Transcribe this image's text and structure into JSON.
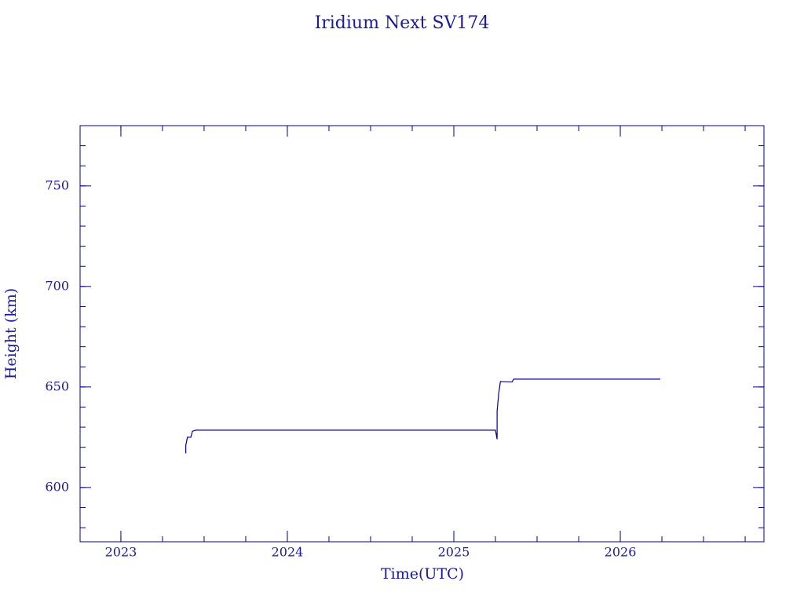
{
  "chart_data": {
    "type": "line",
    "title": "Iridium Next SV174",
    "xlabel": "Time(UTC)",
    "ylabel": "Height (km)",
    "x": [
      2023.39,
      2023.39,
      2023.4,
      2023.42,
      2023.43,
      2023.45,
      2024.0,
      2024.5,
      2025.0,
      2025.25,
      2025.26,
      2025.26,
      2025.27,
      2025.28,
      2025.35,
      2025.36,
      2026.24
    ],
    "series": [
      {
        "name": "Height",
        "color": "#00008b",
        "values": [
          617,
          621,
          625,
          625,
          628,
          628.5,
          628.5,
          628.5,
          628.5,
          628.5,
          624,
          638,
          647,
          652.7,
          652.5,
          653.9,
          653.9
        ]
      }
    ],
    "xlim": [
      2022.755,
      2026.863
    ],
    "xticks": [
      2023,
      2024,
      2025,
      2026
    ],
    "ylim": [
      573,
      780
    ],
    "yticks": [
      600,
      650,
      700,
      750
    ],
    "xminor": 4,
    "yminor": 5,
    "grid": false
  }
}
